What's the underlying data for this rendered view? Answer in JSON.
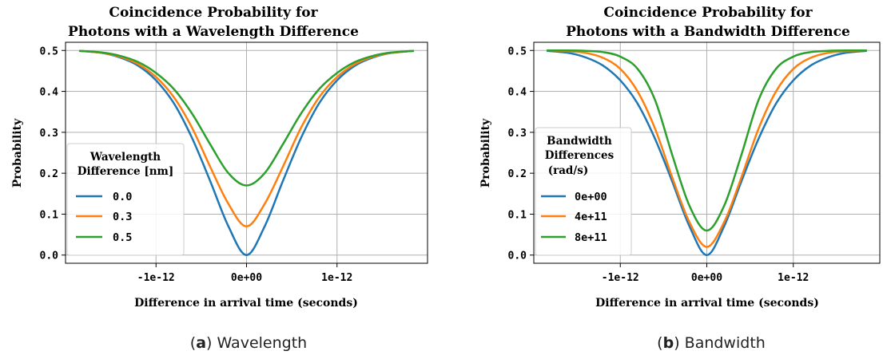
{
  "figures": [
    {
      "caption_letter": "a",
      "caption_text": "Wavelength"
    },
    {
      "caption_letter": "b",
      "caption_text": "Bandwidth"
    }
  ],
  "chart_data": [
    {
      "type": "line",
      "title": [
        "Coincidence Probability for",
        "Photons with a Wavelength Difference"
      ],
      "xlabel": "Difference in arrival time (seconds)",
      "ylabel": "Probability",
      "xlim": [
        -2e-12,
        2e-12
      ],
      "ylim": [
        -0.02,
        0.52
      ],
      "x_ticks": [
        -1e-12,
        0,
        1e-12
      ],
      "x_tick_labels": [
        "-1e-12",
        "0e+00",
        "1e-12"
      ],
      "y_ticks": [
        0.0,
        0.1,
        0.2,
        0.3,
        0.4,
        0.5
      ],
      "y_tick_labels": [
        "0.0",
        "0.1",
        "0.2",
        "0.3",
        "0.4",
        "0.5"
      ],
      "grid": true,
      "legend_title": [
        "Wavelength",
        "Difference [nm]"
      ],
      "legend_position": "lower-left",
      "x_range": [
        -1.85e-12,
        1.85e-12
      ],
      "series": [
        {
          "name": "0.0",
          "color": "#1f77b4",
          "x": [
            -1.85e-12,
            -1.6e-12,
            -1.4e-12,
            -1.2e-12,
            -1e-12,
            -8e-13,
            -6e-13,
            -4e-13,
            -2e-13,
            0,
            2e-13,
            4e-13,
            6e-13,
            8e-13,
            1e-12,
            1.2e-12,
            1.4e-12,
            1.6e-12,
            1.85e-12
          ],
          "y": [
            0.499,
            0.494,
            0.483,
            0.463,
            0.427,
            0.37,
            0.285,
            0.18,
            0.07,
            0.0,
            0.07,
            0.18,
            0.285,
            0.37,
            0.427,
            0.463,
            0.483,
            0.494,
            0.499
          ]
        },
        {
          "name": "0.3",
          "color": "#ff7f0e",
          "x": [
            -1.85e-12,
            -1.6e-12,
            -1.4e-12,
            -1.2e-12,
            -1e-12,
            -8e-13,
            -6e-13,
            -4e-13,
            -2e-13,
            0,
            2e-13,
            4e-13,
            6e-13,
            8e-13,
            1e-12,
            1.2e-12,
            1.4e-12,
            1.6e-12,
            1.85e-12
          ],
          "y": [
            0.499,
            0.494,
            0.485,
            0.467,
            0.435,
            0.385,
            0.31,
            0.215,
            0.125,
            0.07,
            0.125,
            0.215,
            0.31,
            0.385,
            0.435,
            0.467,
            0.485,
            0.494,
            0.499
          ]
        },
        {
          "name": "0.5",
          "color": "#2ca02c",
          "x": [
            -1.85e-12,
            -1.6e-12,
            -1.4e-12,
            -1.2e-12,
            -1e-12,
            -8e-13,
            -6e-13,
            -4e-13,
            -2e-13,
            0,
            2e-13,
            4e-13,
            6e-13,
            8e-13,
            1e-12,
            1.2e-12,
            1.4e-12,
            1.6e-12,
            1.85e-12
          ],
          "y": [
            0.499,
            0.495,
            0.487,
            0.472,
            0.445,
            0.405,
            0.345,
            0.27,
            0.2,
            0.17,
            0.2,
            0.27,
            0.345,
            0.405,
            0.445,
            0.472,
            0.487,
            0.495,
            0.499
          ]
        }
      ]
    },
    {
      "type": "line",
      "title": [
        "Coincidence Probability for",
        "Photons with a Bandwidth Difference"
      ],
      "xlabel": "Difference in arrival time (seconds)",
      "ylabel": "Probability",
      "xlim": [
        -2e-12,
        2e-12
      ],
      "ylim": [
        -0.02,
        0.52
      ],
      "x_ticks": [
        -1e-12,
        0,
        1e-12
      ],
      "x_tick_labels": [
        "-1e-12",
        "0e+00",
        "1e-12"
      ],
      "y_ticks": [
        0.0,
        0.1,
        0.2,
        0.3,
        0.4,
        0.5
      ],
      "y_tick_labels": [
        "0.0",
        "0.1",
        "0.2",
        "0.3",
        "0.4",
        "0.5"
      ],
      "grid": true,
      "legend_title": [
        "Bandwidth",
        "Differences",
        "(rad/s)"
      ],
      "legend_position": "lower-left",
      "x_range": [
        -1.85e-12,
        1.85e-12
      ],
      "series": [
        {
          "name": "0e+00",
          "color": "#1f77b4",
          "x": [
            -1.85e-12,
            -1.6e-12,
            -1.4e-12,
            -1.2e-12,
            -1e-12,
            -8e-13,
            -6e-13,
            -4e-13,
            -2e-13,
            0,
            2e-13,
            4e-13,
            6e-13,
            8e-13,
            1e-12,
            1.2e-12,
            1.4e-12,
            1.6e-12,
            1.85e-12
          ],
          "y": [
            0.499,
            0.494,
            0.483,
            0.463,
            0.427,
            0.37,
            0.285,
            0.18,
            0.07,
            0.0,
            0.07,
            0.18,
            0.285,
            0.37,
            0.427,
            0.463,
            0.483,
            0.494,
            0.499
          ]
        },
        {
          "name": "4e+11",
          "color": "#ff7f0e",
          "x": [
            -1.85e-12,
            -1.6e-12,
            -1.4e-12,
            -1.2e-12,
            -1e-12,
            -8e-13,
            -6e-13,
            -4e-13,
            -2e-13,
            0,
            2e-13,
            4e-13,
            6e-13,
            8e-13,
            1e-12,
            1.2e-12,
            1.4e-12,
            1.6e-12,
            1.85e-12
          ],
          "y": [
            0.5,
            0.498,
            0.494,
            0.482,
            0.455,
            0.4,
            0.31,
            0.19,
            0.08,
            0.02,
            0.08,
            0.19,
            0.31,
            0.4,
            0.455,
            0.482,
            0.494,
            0.498,
            0.5
          ]
        },
        {
          "name": "8e+11",
          "color": "#2ca02c",
          "x": [
            -1.85e-12,
            -1.6e-12,
            -1.4e-12,
            -1.2e-12,
            -1e-12,
            -8e-13,
            -6e-13,
            -4e-13,
            -2e-13,
            0,
            2e-13,
            4e-13,
            6e-13,
            8e-13,
            1e-12,
            1.2e-12,
            1.4e-12,
            1.6e-12,
            1.85e-12
          ],
          "y": [
            0.5,
            0.5,
            0.499,
            0.496,
            0.485,
            0.455,
            0.38,
            0.245,
            0.12,
            0.06,
            0.12,
            0.245,
            0.38,
            0.455,
            0.485,
            0.496,
            0.499,
            0.5,
            0.5
          ]
        }
      ]
    }
  ]
}
